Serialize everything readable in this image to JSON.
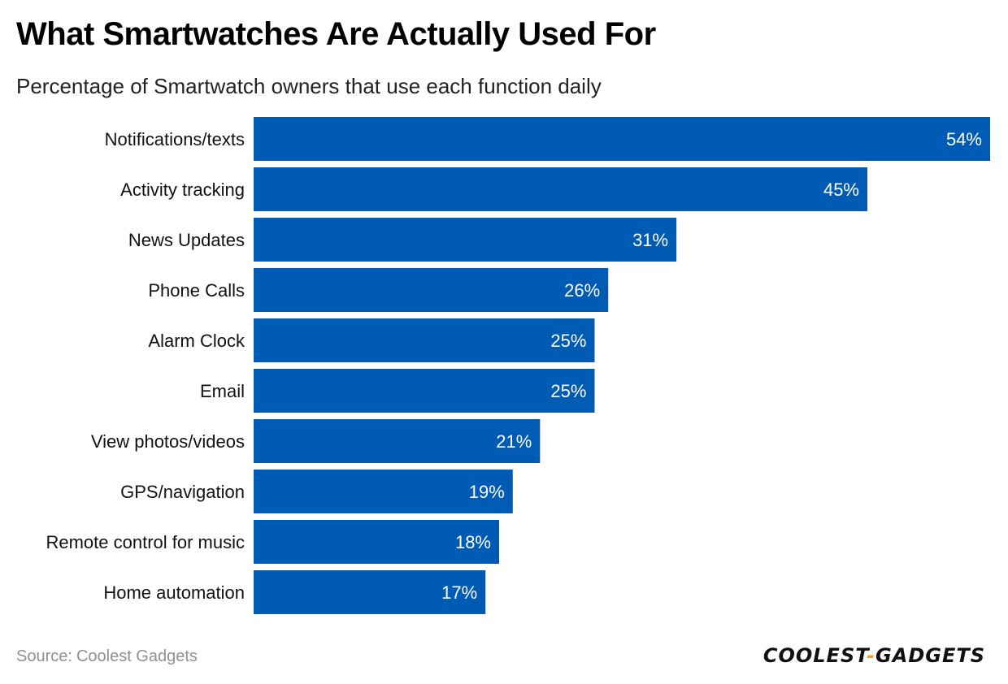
{
  "title": "What Smartwatches Are Actually Used For",
  "subtitle": "Percentage of Smartwatch owners that use each function daily",
  "source": {
    "prefix": "Source:",
    "name": "Coolest Gadgets"
  },
  "logo": {
    "part1": "COOLEST",
    "separator": "-",
    "part2": "GADGETS"
  },
  "colors": {
    "bar": "#005bb5",
    "bar_label": "#ffffff",
    "category_label": "#111111",
    "logo_accent": "#f0a030"
  },
  "chart_data": {
    "type": "bar",
    "orientation": "horizontal",
    "title": "What Smartwatches Are Actually Used For",
    "subtitle": "Percentage of Smartwatch owners that use each function daily",
    "categories": [
      "Notifications/texts",
      "Activity tracking",
      "News Updates",
      "Phone Calls",
      "Alarm Clock",
      "Email",
      "View photos/videos",
      "GPS/navigation",
      "Remote control for music",
      "Home automation"
    ],
    "values": [
      54,
      45,
      31,
      26,
      25,
      25,
      21,
      19,
      18,
      17
    ],
    "value_labels": [
      "54%",
      "45%",
      "31%",
      "26%",
      "25%",
      "25%",
      "21%",
      "19%",
      "18%",
      "17%"
    ],
    "unit": "%",
    "xlim": [
      0,
      54
    ],
    "grid": false,
    "legend": "none"
  }
}
